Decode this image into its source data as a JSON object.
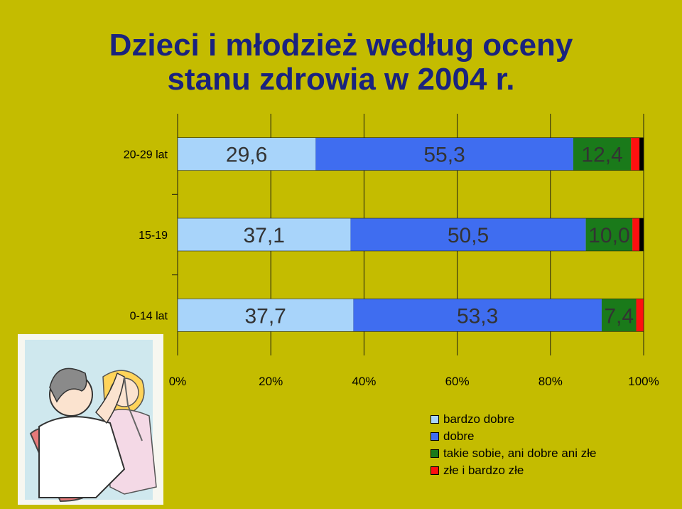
{
  "title": {
    "line1": "Dzieci i młodzież według oceny",
    "line2": "stanu zdrowia w 2004 r."
  },
  "colors": {
    "background": "#c4bc00",
    "title": "#1a237e",
    "bardzo_dobre": "#a8d4fa",
    "dobre": "#3f6df0",
    "takie_sobie": "#1a7a1a",
    "zle": "#ff1010",
    "black": "#000000"
  },
  "chart_data": {
    "type": "bar",
    "orientation": "horizontal-stacked-100",
    "categories": [
      "20-29 lat",
      "15-19",
      "0-14 lat"
    ],
    "series": [
      {
        "name": "bardzo dobre",
        "values": [
          29.6,
          37.1,
          37.7
        ],
        "labels": [
          "29,6",
          "37,1",
          "37,7"
        ],
        "color": "#a8d4fa"
      },
      {
        "name": "dobre",
        "values": [
          55.3,
          50.5,
          53.3
        ],
        "labels": [
          "55,3",
          "50,5",
          "53,3"
        ],
        "color": "#3f6df0"
      },
      {
        "name": "takie sobie, ani dobre ani złe",
        "values": [
          12.4,
          10.0,
          7.4
        ],
        "labels": [
          "12,4",
          "10,0",
          "7,4"
        ],
        "color": "#1a7a1a"
      },
      {
        "name": "złe i bardzo złe",
        "values": [
          1.8,
          1.5,
          1.6
        ],
        "labels": [
          "",
          "",
          ""
        ],
        "color": "#ff1010"
      },
      {
        "name": "",
        "values": [
          0.9,
          0.9,
          0.0
        ],
        "labels": [
          "",
          "",
          ""
        ],
        "color": "#000000"
      }
    ],
    "xticks": [
      "0%",
      "20%",
      "40%",
      "60%",
      "80%",
      "100%"
    ],
    "xlim": [
      0,
      100
    ],
    "grid": true,
    "legend": "bottom-right"
  },
  "legend_items": [
    {
      "label": "bardzo dobre",
      "color": "#a8d4fa"
    },
    {
      "label": "dobre",
      "color": "#3f6df0"
    },
    {
      "label": "takie sobie, ani dobre ani złe",
      "color": "#1a7a1a"
    },
    {
      "label": "złe i bardzo złe",
      "color": "#ff1010"
    }
  ],
  "clipart": "doctor-examining-child-illustration"
}
